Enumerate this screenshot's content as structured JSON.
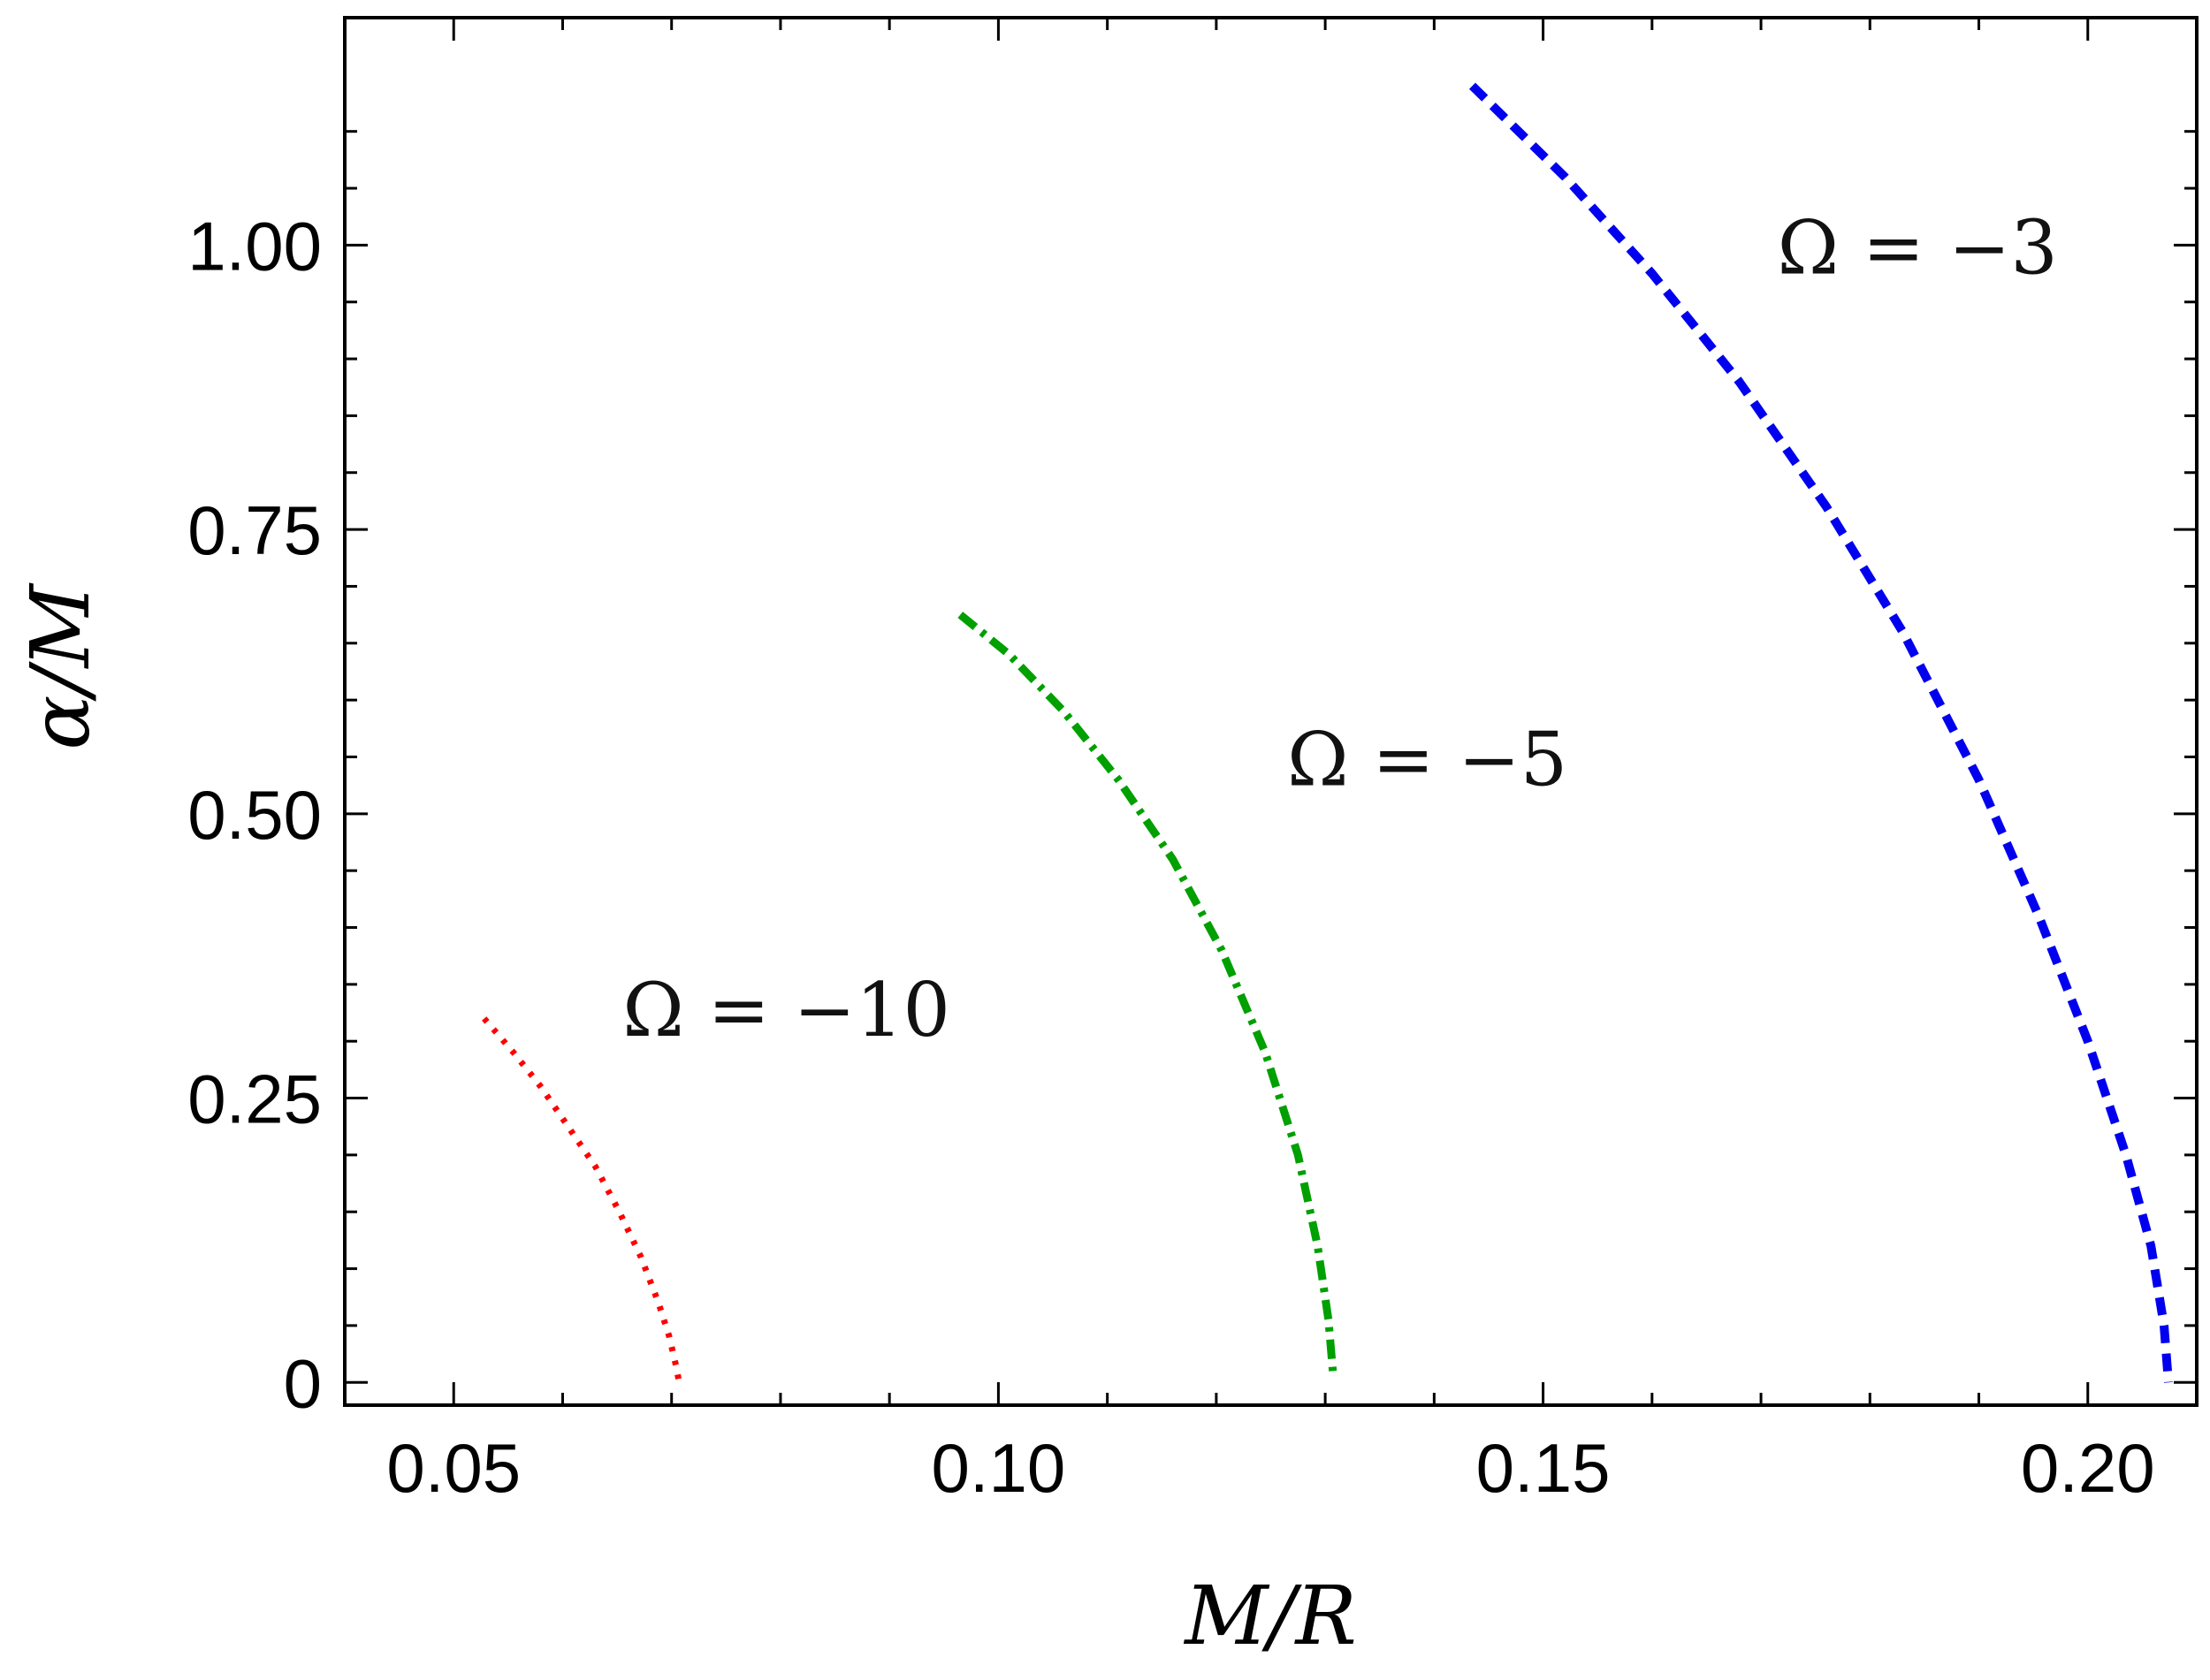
{
  "chart_data": {
    "type": "line",
    "xlabel": "M/R",
    "ylabel": "α/M",
    "xlim": [
      0.04,
      0.21
    ],
    "ylim": [
      -0.02,
      1.2
    ],
    "x_ticks": [
      0.05,
      0.1,
      0.15,
      0.2
    ],
    "x_tick_labels": [
      "0.05",
      "0.10",
      "0.15",
      "0.20"
    ],
    "y_ticks": [
      0,
      0.25,
      0.5,
      0.75,
      1.0
    ],
    "y_tick_labels": [
      "0",
      "0.25",
      "0.50",
      "0.75",
      "1.00"
    ],
    "grid": false,
    "series": [
      {
        "color": "#ff0000",
        "dash": "dotted",
        "x": [
          0.0528,
          0.0555,
          0.058,
          0.0605,
          0.063,
          0.0652,
          0.0672,
          0.0688,
          0.0698,
          0.0704,
          0.0707
        ],
        "y": [
          0.32,
          0.29,
          0.26,
          0.225,
          0.19,
          0.15,
          0.11,
          0.07,
          0.04,
          0.015,
          0.0
        ]
      },
      {
        "color": "#00a000",
        "dash": "dash-dot",
        "x": [
          0.0965,
          0.101,
          0.106,
          0.111,
          0.116,
          0.1205,
          0.1245,
          0.1275,
          0.1293,
          0.1303,
          0.1307
        ],
        "y": [
          0.675,
          0.64,
          0.59,
          0.53,
          0.46,
          0.38,
          0.29,
          0.2,
          0.12,
          0.055,
          0.01
        ]
      },
      {
        "color": "#0000ee",
        "dash": "dashed",
        "x": [
          0.1435,
          0.152,
          0.16,
          0.168,
          0.176,
          0.183,
          0.19,
          0.1955,
          0.2,
          0.2035,
          0.2058,
          0.207,
          0.2074
        ],
        "y": [
          1.14,
          1.06,
          0.975,
          0.88,
          0.77,
          0.66,
          0.53,
          0.41,
          0.3,
          0.2,
          0.12,
          0.05,
          0.0
        ]
      }
    ],
    "annotations": [
      {
        "text": "Ω = −10",
        "x": 0.0655,
        "y": 0.305
      },
      {
        "text": "Ω = −5",
        "x": 0.1265,
        "y": 0.525
      },
      {
        "text": "Ω = −3",
        "x": 0.1715,
        "y": 0.975
      }
    ]
  }
}
